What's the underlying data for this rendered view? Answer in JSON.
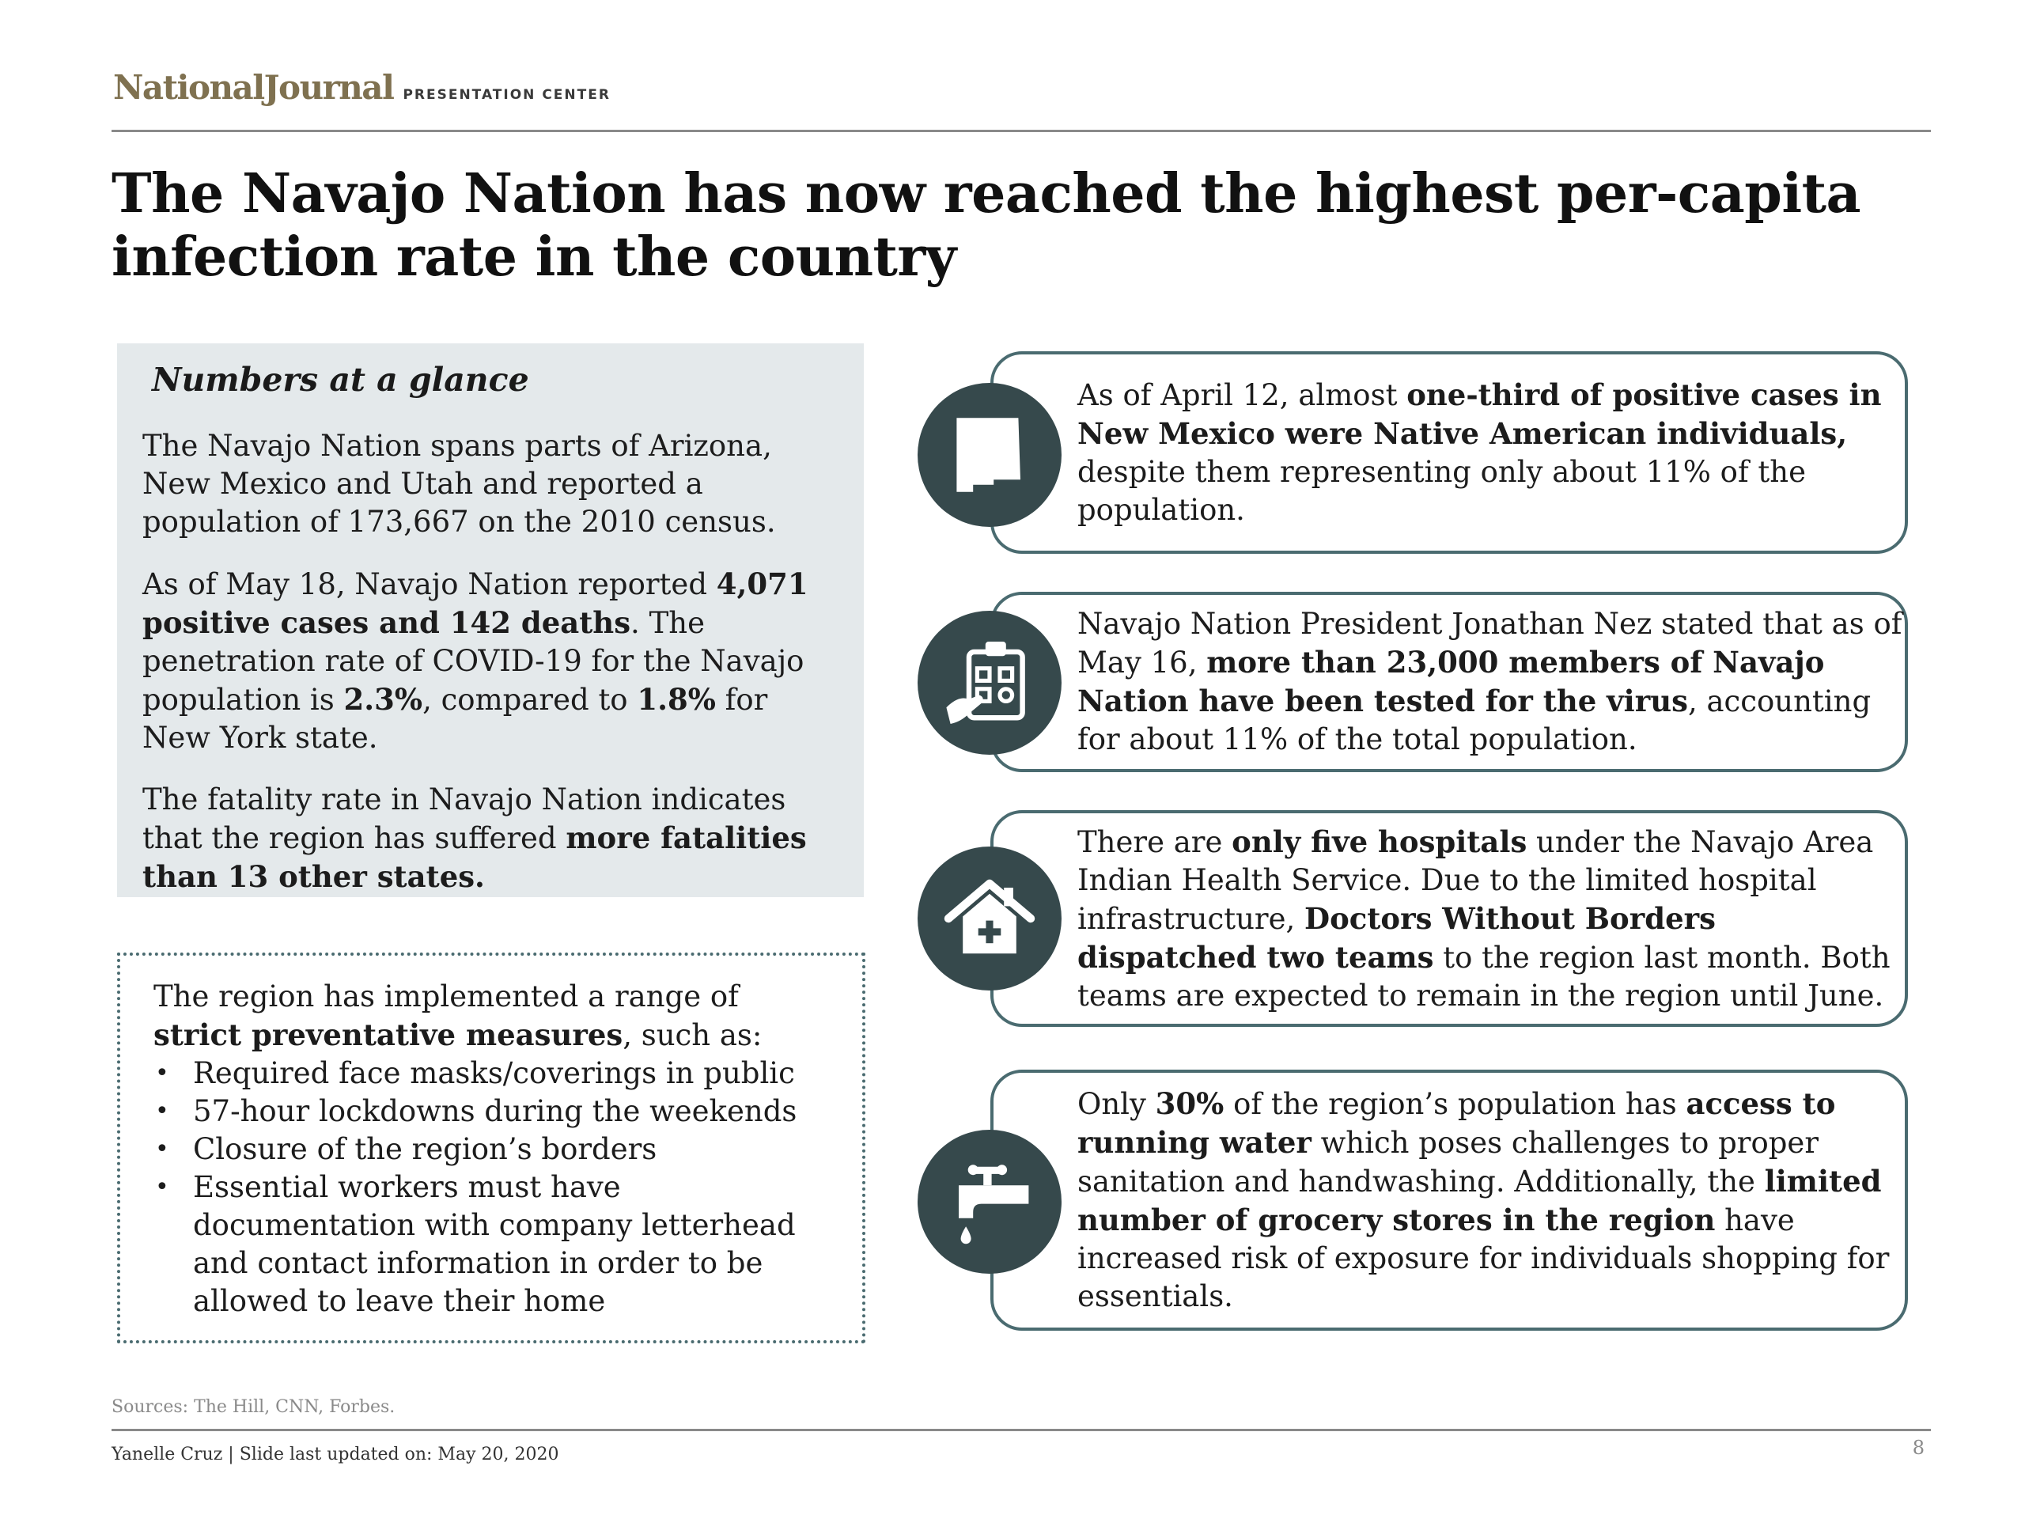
{
  "header": {
    "brand": "NationalJournal",
    "brand_sub": "PRESENTATION CENTER",
    "title": "The Navajo Nation has now reached the highest per-capita infection rate in the country"
  },
  "glance": {
    "heading": "Numbers at a glance",
    "p1": "The Navajo Nation spans parts of Arizona, New Mexico and Utah and reported a population of 173,667 on the 2010 census.",
    "p2": {
      "t1": "As of May 18, Navajo Nation reported ",
      "b1": "4,071 positive cases and 142 deaths",
      "t2": ". The penetration rate of COVID-19 for the Navajo population is ",
      "b2": "2.3%",
      "t3": ", compared to ",
      "b3": "1.8%",
      "t4": " for New York state."
    },
    "p3": {
      "t1": "The fatality rate in Navajo Nation indicates that the region has suffered ",
      "b1": "more fatalities than 13 other states."
    }
  },
  "measures": {
    "t1": "The region has implemented a range of ",
    "b1": "strict preventative measures",
    "t2": ", such as:",
    "items": [
      "Required face masks/coverings in public",
      "57-hour lockdowns during the weekends",
      "Closure of the region’s borders",
      "Essential workers must have documentation with company letterhead and contact information in order to be allowed to leave their home"
    ]
  },
  "cards": [
    {
      "icon": "new-mexico-map-icon",
      "t1": "As of April 12, almost ",
      "b1": "one-third of positive cases in New Mexico were Native American individuals,",
      "t2": " despite them representing only about 11% of the population."
    },
    {
      "icon": "clipboard-test-icon",
      "t1": "Navajo Nation President Jonathan Nez stated that as of May 16, ",
      "b1": "more than 23,000 members of Navajo Nation have been tested for the virus",
      "t2": ", accounting for about 11% of the total population."
    },
    {
      "icon": "hospital-house-icon",
      "t1": "There are ",
      "b1": "only five hospitals",
      "t2": " under the Navajo Area Indian Health Service. Due to the limited hospital infrastructure, ",
      "b2": "Doctors Without Borders dispatched two teams",
      "t3": " to the region last month. Both teams are expected to remain in the region until June."
    },
    {
      "icon": "water-faucet-icon",
      "t1": "Only ",
      "b1": "30%",
      "t2": " of the region’s population has ",
      "b2": "access to running water",
      "t3": " which poses challenges to proper sanitation and handwashing. Additionally, the ",
      "b3": "limited number of grocery stores in the region",
      "t4": " have increased risk of exposure for individuals shopping for essentials."
    }
  ],
  "footer": {
    "sources": "Sources: The Hill, CNN, Forbes.",
    "author_line": "Yanelle Cruz | Slide last updated on: May 20, 2020",
    "page_number": "8"
  },
  "colors": {
    "accent_dark": "#36494c",
    "border": "#4a6b70",
    "panel_bg": "#e4e9eb",
    "brand": "#7f7150"
  }
}
